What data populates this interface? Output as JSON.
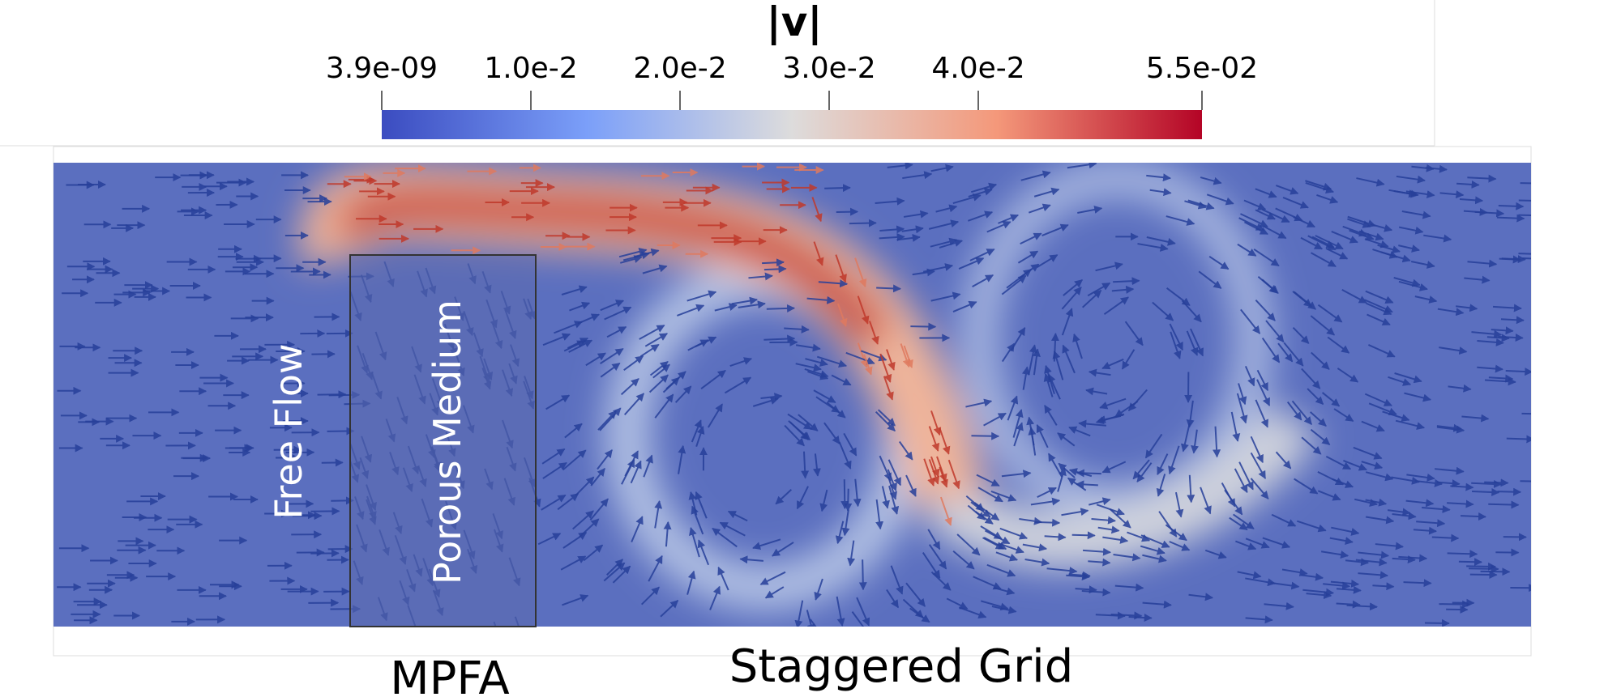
{
  "colorbar": {
    "title": "|v|",
    "lim": [
      3.9e-09,
      0.055
    ],
    "ticks": [
      {
        "value": 3.9e-09,
        "label": "3.9e-09"
      },
      {
        "value": 0.01,
        "label": "1.0e-2"
      },
      {
        "value": 0.02,
        "label": "2.0e-2"
      },
      {
        "value": 0.03,
        "label": "3.0e-2"
      },
      {
        "value": 0.04,
        "label": "4.0e-2"
      },
      {
        "value": 0.055,
        "label": "5.5e-02"
      }
    ]
  },
  "labels": {
    "free_flow": "Free Flow",
    "porous_medium": "Porous Medium",
    "mpfa": "MPFA",
    "staggered_grid": "Staggered Grid"
  }
}
